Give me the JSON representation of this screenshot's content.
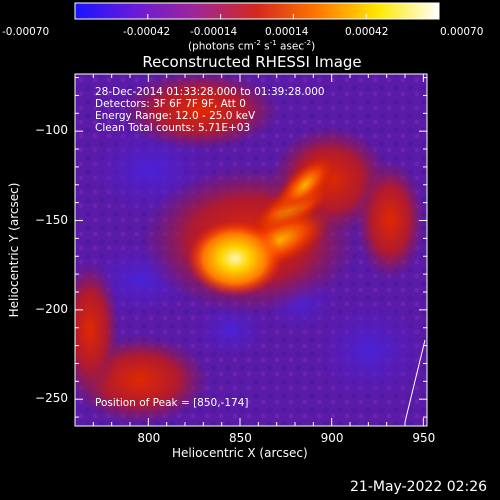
{
  "colorbar": {
    "ticks": [
      "-0.00070",
      "-0.00042",
      "-0.00014",
      "0.00014",
      "0.00042",
      "0.00070"
    ],
    "tick_values": [
      -0.0007,
      -0.00042,
      -0.00014,
      0.00014,
      0.00042,
      0.0007
    ],
    "range": [
      -0.0007,
      0.0007
    ],
    "units_prefix": "(photons cm",
    "units_sup1": "-2",
    "units_mid": " s",
    "units_sup2": "-1",
    "units_mid2": " asec",
    "units_sup3": "-2",
    "units_suffix": ")",
    "colormap_stops": [
      "#1a14ff",
      "#6a1ad8",
      "#a02696",
      "#d4281e",
      "#ff7800",
      "#ffe800",
      "#ffffff"
    ]
  },
  "chart_data": {
    "type": "heatmap",
    "title": "Reconstructed RHESSI Image",
    "xlabel": "Heliocentric X (arcsec)",
    "ylabel": "Heliocentric Y (arcsec)",
    "xlim": [
      760,
      952
    ],
    "ylim": [
      -265,
      -68
    ],
    "xticks": [
      800,
      850,
      900,
      950
    ],
    "yticks": [
      -100,
      -150,
      -200,
      -250
    ],
    "x_tick_labels": [
      "800",
      "850",
      "900",
      "950"
    ],
    "y_tick_labels": [
      "−100",
      "−150",
      "−200",
      "−250"
    ],
    "peak": {
      "x": 850,
      "y": -174
    },
    "info": {
      "time_range": "28-Dec-2014 01:33:28.000 to 01:39:28.000",
      "detectors": "Detectors: 3F 6F 7F 9F, Att 0",
      "energy": "Energy Range: 12.0 - 25.0 keV",
      "clean": "Clean     Total counts: 5.71E+03",
      "peak_label": "Position of Peak = [850,-174]"
    }
  },
  "footer": {
    "date": "21-May-2022 02:26"
  }
}
